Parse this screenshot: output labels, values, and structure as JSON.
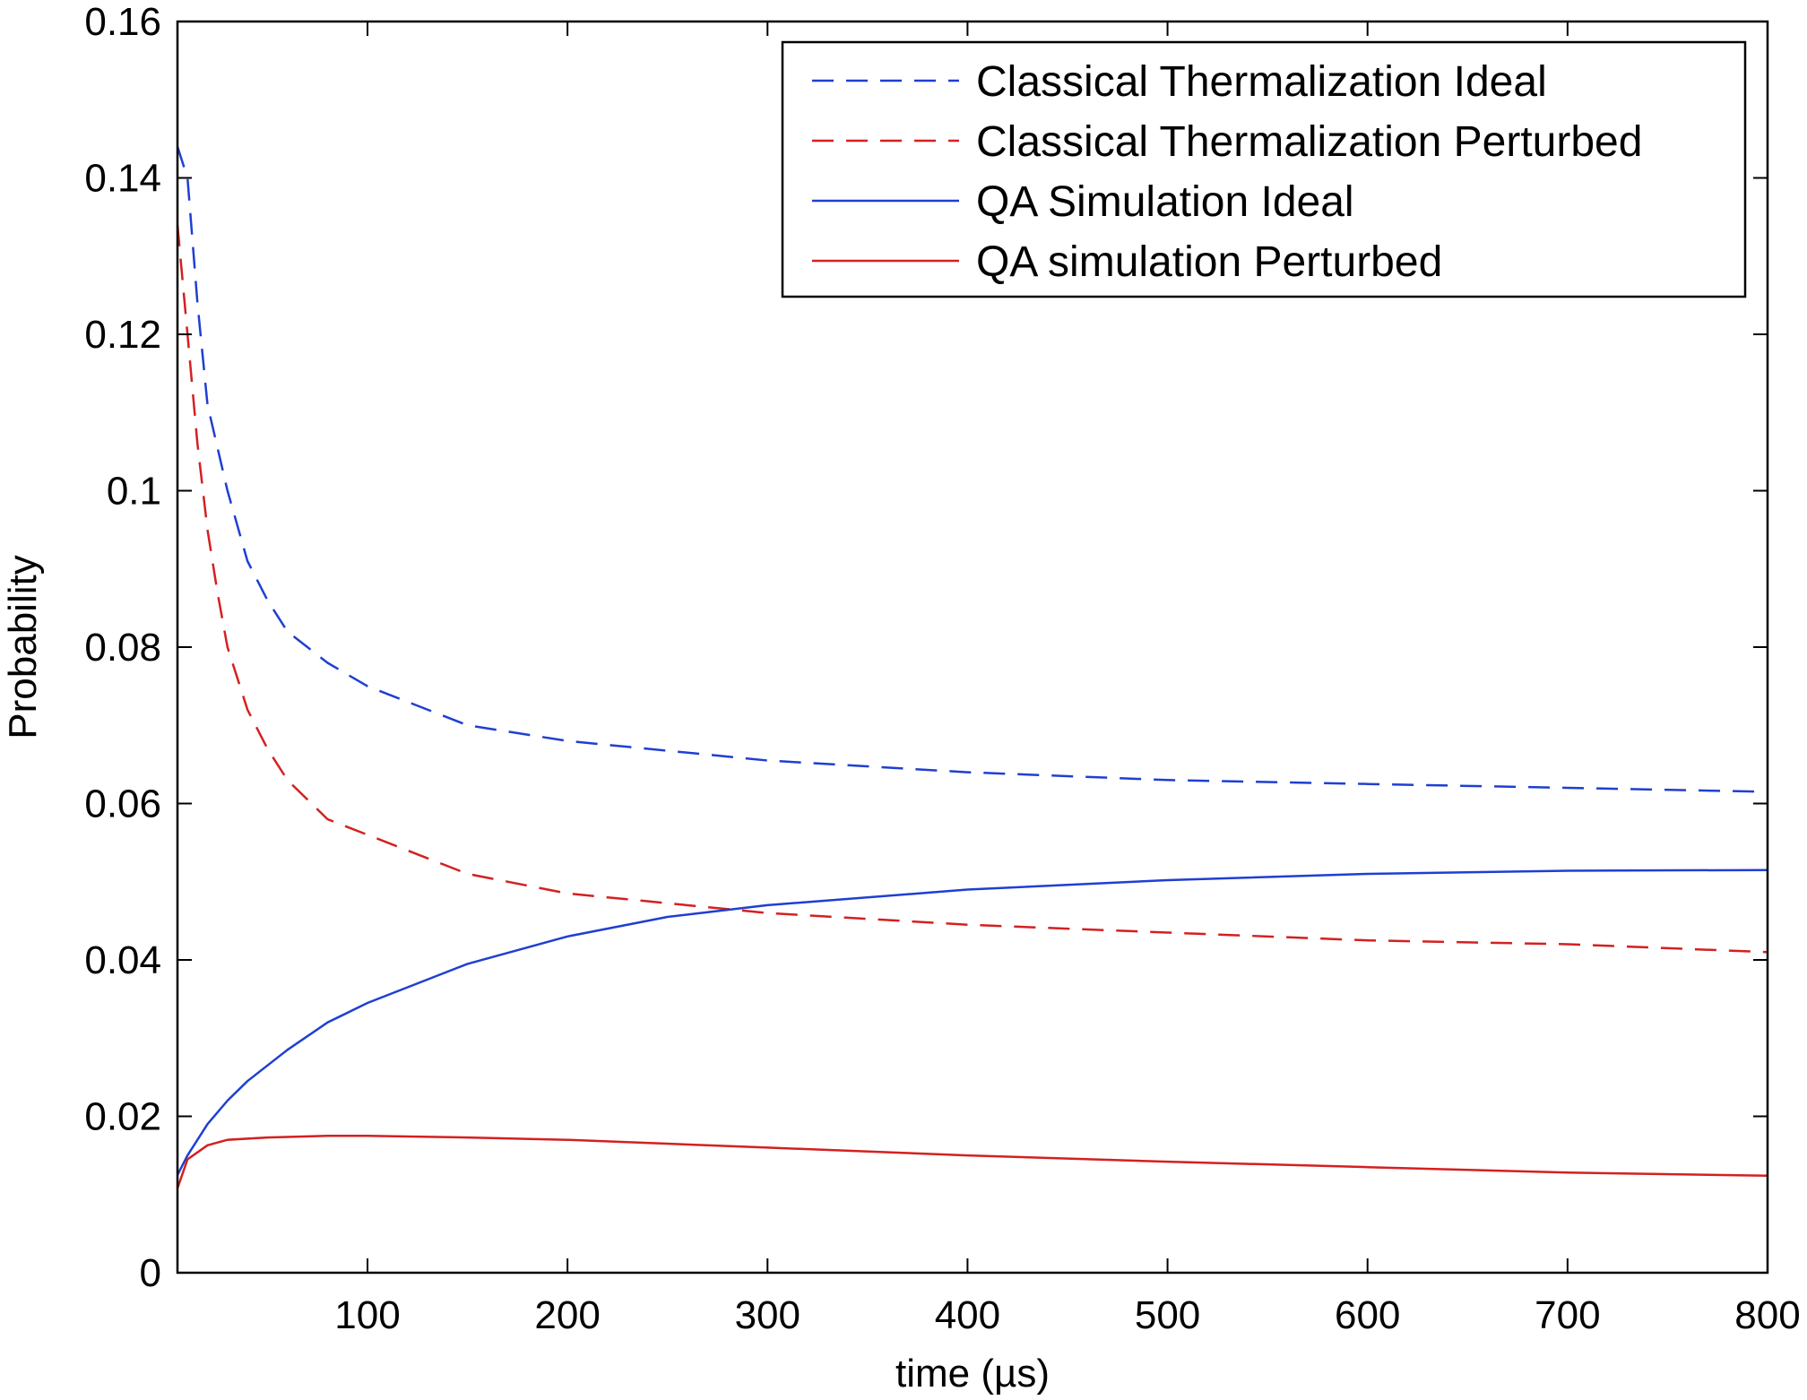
{
  "chart_data": {
    "type": "line",
    "title": "",
    "xlabel": "time (µs)",
    "ylabel": "Probability",
    "xlim": [
      5,
      800
    ],
    "ylim": [
      0,
      0.16
    ],
    "xticks": [
      100,
      200,
      300,
      400,
      500,
      600,
      700,
      800
    ],
    "xtick_labels": [
      "100",
      "200",
      "300",
      "400",
      "500",
      "600",
      "700",
      "800"
    ],
    "yticks": [
      0,
      0.02,
      0.04,
      0.06,
      0.08,
      0.1,
      0.12,
      0.14,
      0.16
    ],
    "ytick_labels": [
      "0",
      "0.02",
      "0.04",
      "0.06",
      "0.08",
      "0.1",
      "0.12",
      "0.14",
      "0.16"
    ],
    "grid": false,
    "legend_position": "top-right",
    "series": [
      {
        "name": "Classical Thermalization Ideal",
        "color": "#1f3fd1",
        "style": "dashed",
        "x": [
          5,
          10,
          15,
          20,
          30,
          40,
          50,
          60,
          80,
          100,
          150,
          200,
          300,
          400,
          500,
          600,
          700,
          800
        ],
        "y": [
          0.144,
          0.14,
          0.124,
          0.111,
          0.1,
          0.091,
          0.086,
          0.082,
          0.078,
          0.075,
          0.07,
          0.068,
          0.0655,
          0.064,
          0.063,
          0.0625,
          0.062,
          0.0615
        ]
      },
      {
        "name": "Classical Thermalization Perturbed",
        "color": "#d42020",
        "style": "dashed",
        "x": [
          5,
          10,
          15,
          20,
          25,
          30,
          40,
          50,
          60,
          80,
          100,
          150,
          200,
          300,
          400,
          500,
          600,
          700,
          800
        ],
        "y": [
          0.134,
          0.12,
          0.106,
          0.095,
          0.087,
          0.08,
          0.072,
          0.067,
          0.063,
          0.058,
          0.056,
          0.051,
          0.0485,
          0.046,
          0.0445,
          0.0435,
          0.0425,
          0.042,
          0.041
        ]
      },
      {
        "name": "QA Simulation Ideal",
        "color": "#1f3fd1",
        "style": "solid",
        "x": [
          5,
          10,
          20,
          30,
          40,
          60,
          80,
          100,
          150,
          200,
          250,
          300,
          400,
          500,
          600,
          700,
          800
        ],
        "y": [
          0.0125,
          0.015,
          0.019,
          0.022,
          0.0245,
          0.0285,
          0.032,
          0.0345,
          0.0395,
          0.043,
          0.0455,
          0.047,
          0.049,
          0.0502,
          0.051,
          0.0514,
          0.0515
        ]
      },
      {
        "name": "QA simulation Perturbed",
        "color": "#d42020",
        "style": "solid",
        "x": [
          5,
          10,
          20,
          30,
          50,
          80,
          100,
          150,
          200,
          300,
          400,
          500,
          600,
          700,
          800
        ],
        "y": [
          0.0108,
          0.0145,
          0.0163,
          0.017,
          0.0173,
          0.0175,
          0.0175,
          0.0173,
          0.017,
          0.016,
          0.015,
          0.0142,
          0.0135,
          0.0128,
          0.0124
        ]
      }
    ]
  }
}
